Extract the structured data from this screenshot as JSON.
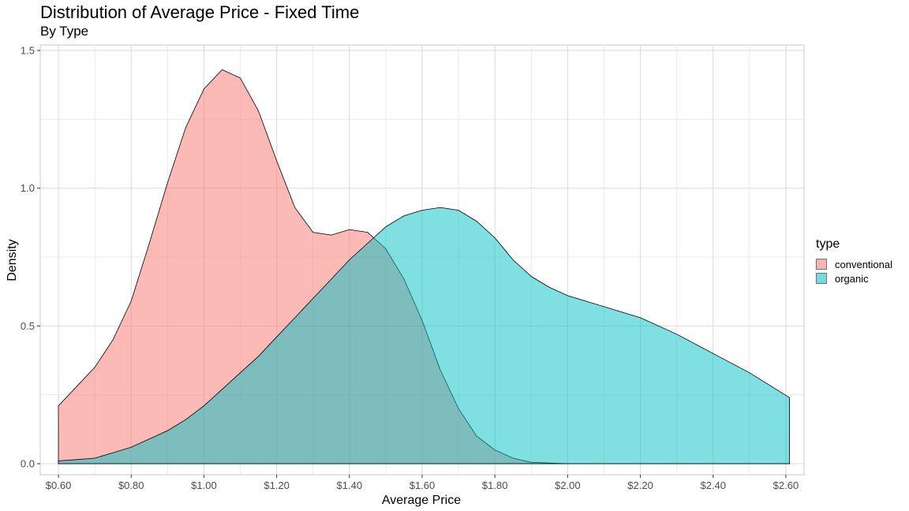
{
  "chart_data": {
    "type": "area",
    "title": "Distribution of Average Price - Fixed Time",
    "subtitle": "By Type",
    "xlabel": "Average Price",
    "ylabel": "Density",
    "xlim": [
      0.55,
      2.65
    ],
    "ylim": [
      -0.04,
      1.52
    ],
    "x_ticks": [
      0.6,
      0.8,
      1.0,
      1.2,
      1.4,
      1.6,
      1.8,
      2.0,
      2.2,
      2.4,
      2.6
    ],
    "x_tick_labels": [
      "$0.60",
      "$0.80",
      "$1.00",
      "$1.20",
      "$1.40",
      "$1.60",
      "$1.80",
      "$2.00",
      "$2.20",
      "$2.40",
      "$2.60"
    ],
    "y_ticks": [
      0.0,
      0.5,
      1.0,
      1.5
    ],
    "y_tick_labels": [
      "0.0",
      "0.5",
      "1.0",
      "1.5"
    ],
    "grid": true,
    "legend": {
      "title": "type",
      "position": "right",
      "entries": [
        "conventional",
        "organic"
      ]
    },
    "series": [
      {
        "name": "conventional",
        "color": "#F8766D",
        "points": [
          [
            0.6,
            0.21
          ],
          [
            0.65,
            0.28
          ],
          [
            0.7,
            0.35
          ],
          [
            0.75,
            0.45
          ],
          [
            0.8,
            0.59
          ],
          [
            0.85,
            0.8
          ],
          [
            0.9,
            1.02
          ],
          [
            0.95,
            1.22
          ],
          [
            1.0,
            1.36
          ],
          [
            1.05,
            1.43
          ],
          [
            1.1,
            1.4
          ],
          [
            1.15,
            1.28
          ],
          [
            1.2,
            1.1
          ],
          [
            1.25,
            0.93
          ],
          [
            1.3,
            0.84
          ],
          [
            1.35,
            0.83
          ],
          [
            1.4,
            0.85
          ],
          [
            1.45,
            0.84
          ],
          [
            1.5,
            0.78
          ],
          [
            1.55,
            0.67
          ],
          [
            1.6,
            0.52
          ],
          [
            1.65,
            0.34
          ],
          [
            1.7,
            0.2
          ],
          [
            1.75,
            0.1
          ],
          [
            1.8,
            0.05
          ],
          [
            1.85,
            0.02
          ],
          [
            1.9,
            0.005
          ],
          [
            2.0,
            0.0
          ],
          [
            2.2,
            0.0
          ],
          [
            2.4,
            0.0
          ],
          [
            2.61,
            0.0
          ]
        ]
      },
      {
        "name": "organic",
        "color": "#00BFC4",
        "points": [
          [
            0.6,
            0.01
          ],
          [
            0.65,
            0.015
          ],
          [
            0.7,
            0.02
          ],
          [
            0.75,
            0.04
          ],
          [
            0.8,
            0.06
          ],
          [
            0.85,
            0.09
          ],
          [
            0.9,
            0.12
          ],
          [
            0.95,
            0.16
          ],
          [
            1.0,
            0.21
          ],
          [
            1.05,
            0.27
          ],
          [
            1.1,
            0.33
          ],
          [
            1.15,
            0.39
          ],
          [
            1.2,
            0.46
          ],
          [
            1.25,
            0.53
          ],
          [
            1.3,
            0.6
          ],
          [
            1.35,
            0.67
          ],
          [
            1.4,
            0.74
          ],
          [
            1.45,
            0.8
          ],
          [
            1.5,
            0.86
          ],
          [
            1.55,
            0.9
          ],
          [
            1.6,
            0.92
          ],
          [
            1.65,
            0.93
          ],
          [
            1.7,
            0.92
          ],
          [
            1.75,
            0.88
          ],
          [
            1.8,
            0.82
          ],
          [
            1.85,
            0.74
          ],
          [
            1.9,
            0.68
          ],
          [
            1.95,
            0.64
          ],
          [
            2.0,
            0.61
          ],
          [
            2.1,
            0.57
          ],
          [
            2.2,
            0.53
          ],
          [
            2.3,
            0.47
          ],
          [
            2.4,
            0.4
          ],
          [
            2.5,
            0.33
          ],
          [
            2.61,
            0.24
          ]
        ]
      }
    ]
  }
}
